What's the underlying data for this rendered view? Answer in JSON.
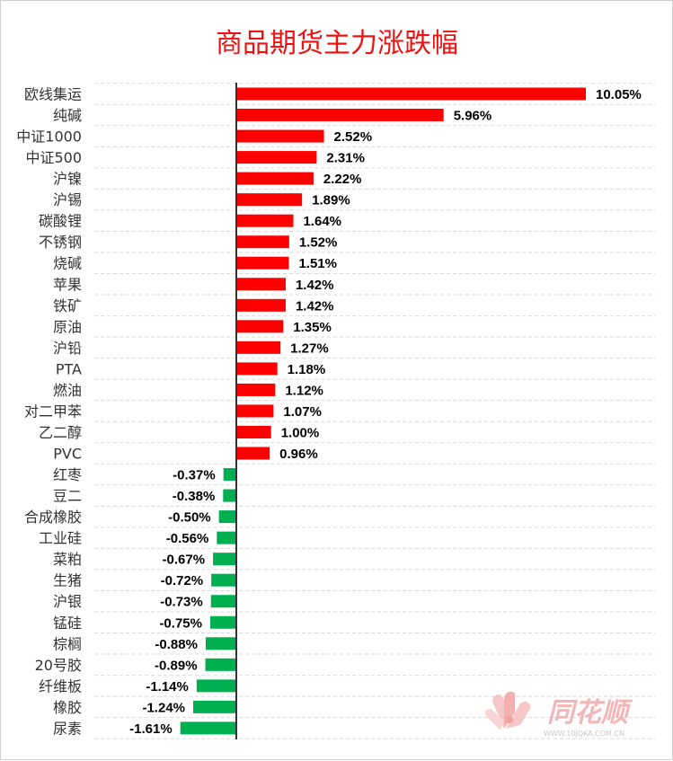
{
  "chart_data": {
    "type": "bar",
    "orientation": "horizontal",
    "title": "商品期货主力涨跌幅",
    "xlabel": "",
    "ylabel": "",
    "unit": "%",
    "positive_color": "#ff0000",
    "negative_color": "#00b050",
    "title_color": "#ee1111",
    "categories": [
      "欧线集运",
      "纯碱",
      "中证1000",
      "中证500",
      "沪镍",
      "沪锡",
      "碳酸锂",
      "不锈钢",
      "烧碱",
      "苹果",
      "铁矿",
      "原油",
      "沪铅",
      "PTA",
      "燃油",
      "对二甲苯",
      "乙二醇",
      "PVC",
      "红枣",
      "豆二",
      "合成橡胶",
      "工业硅",
      "菜粕",
      "生猪",
      "沪银",
      "锰硅",
      "棕榈",
      "20号胶",
      "纤维板",
      "橡胶",
      "尿素"
    ],
    "values": [
      10.05,
      5.96,
      2.52,
      2.31,
      2.22,
      1.89,
      1.64,
      1.52,
      1.51,
      1.42,
      1.42,
      1.35,
      1.27,
      1.18,
      1.12,
      1.07,
      1.0,
      0.96,
      -0.37,
      -0.38,
      -0.5,
      -0.56,
      -0.67,
      -0.72,
      -0.73,
      -0.75,
      -0.88,
      -0.89,
      -1.14,
      -1.24,
      -1.61
    ],
    "labels": [
      "10.05%",
      "5.96%",
      "2.52%",
      "2.31%",
      "2.22%",
      "1.89%",
      "1.64%",
      "1.52%",
      "1.51%",
      "1.42%",
      "1.42%",
      "1.35%",
      "1.27%",
      "1.18%",
      "1.12%",
      "1.07%",
      "1.00%",
      "0.96%",
      "-0.37%",
      "-0.38%",
      "-0.50%",
      "-0.56%",
      "-0.67%",
      "-0.72%",
      "-0.73%",
      "-0.75%",
      "-0.88%",
      "-0.89%",
      "-1.14%",
      "-1.24%",
      "-1.61%"
    ],
    "xlim": [
      -1.61,
      10.05
    ],
    "grid": true
  },
  "watermark": {
    "brand": "同花顺",
    "url": "WWW.10JQKA.COM.CN"
  }
}
